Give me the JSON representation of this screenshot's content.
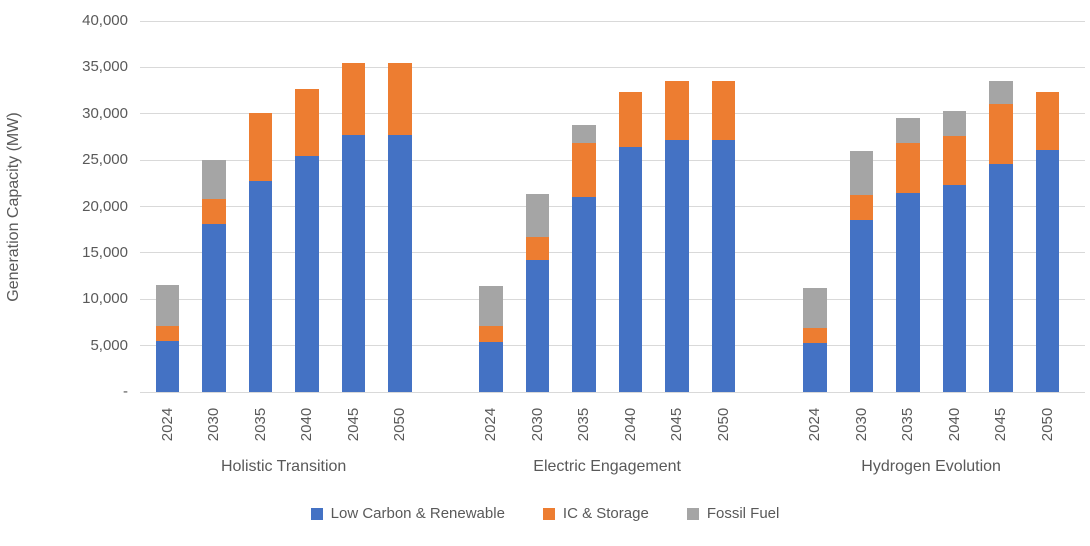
{
  "chart_data": {
    "type": "bar",
    "stacked": true,
    "ylabel": "Generation Capacity (MW)",
    "ylim": [
      0,
      40000
    ],
    "ytick_step": 5000,
    "ytick_labels_bottom_to_top": [
      "-",
      "5,000",
      "10,000",
      "15,000",
      "20,000",
      "25,000",
      "30,000",
      "35,000",
      "40,000"
    ],
    "grid": true,
    "legend_position": "bottom",
    "categories": [
      "2024",
      "2030",
      "2035",
      "2040",
      "2045",
      "2050"
    ],
    "series": [
      {
        "key": "low_carbon",
        "name": "Low Carbon & Renewable",
        "color": "#4472C4"
      },
      {
        "key": "ic_storage",
        "name": "IC & Storage",
        "color": "#ED7D31"
      },
      {
        "key": "fossil_fuel",
        "name": "Fossil Fuel",
        "color": "#A5A5A5"
      }
    ],
    "groups": [
      {
        "label": "Holistic Transition",
        "values": {
          "low_carbon": [
            5500,
            18100,
            22700,
            25400,
            27700,
            27700
          ],
          "ic_storage": [
            1600,
            2700,
            7400,
            7300,
            7800,
            7800
          ],
          "fossil_fuel": [
            4400,
            4200,
            0,
            0,
            0,
            0
          ]
        }
      },
      {
        "label": "Electric Engagement",
        "values": {
          "low_carbon": [
            5400,
            14200,
            21000,
            26400,
            27200,
            27200
          ],
          "ic_storage": [
            1700,
            2500,
            5800,
            5900,
            6300,
            6300
          ],
          "fossil_fuel": [
            4300,
            4700,
            2000,
            0,
            0,
            0
          ]
        }
      },
      {
        "label": "Hydrogen Evolution",
        "values": {
          "low_carbon": [
            5300,
            18600,
            21500,
            22300,
            24600,
            26100
          ],
          "ic_storage": [
            1600,
            2600,
            5400,
            5300,
            6400,
            6300
          ],
          "fossil_fuel": [
            4300,
            4800,
            2600,
            2700,
            2500,
            0
          ]
        }
      }
    ],
    "colors": {
      "axis_text": "#595959",
      "gridline": "#D9D9D9",
      "background": "#FFFFFF"
    }
  }
}
